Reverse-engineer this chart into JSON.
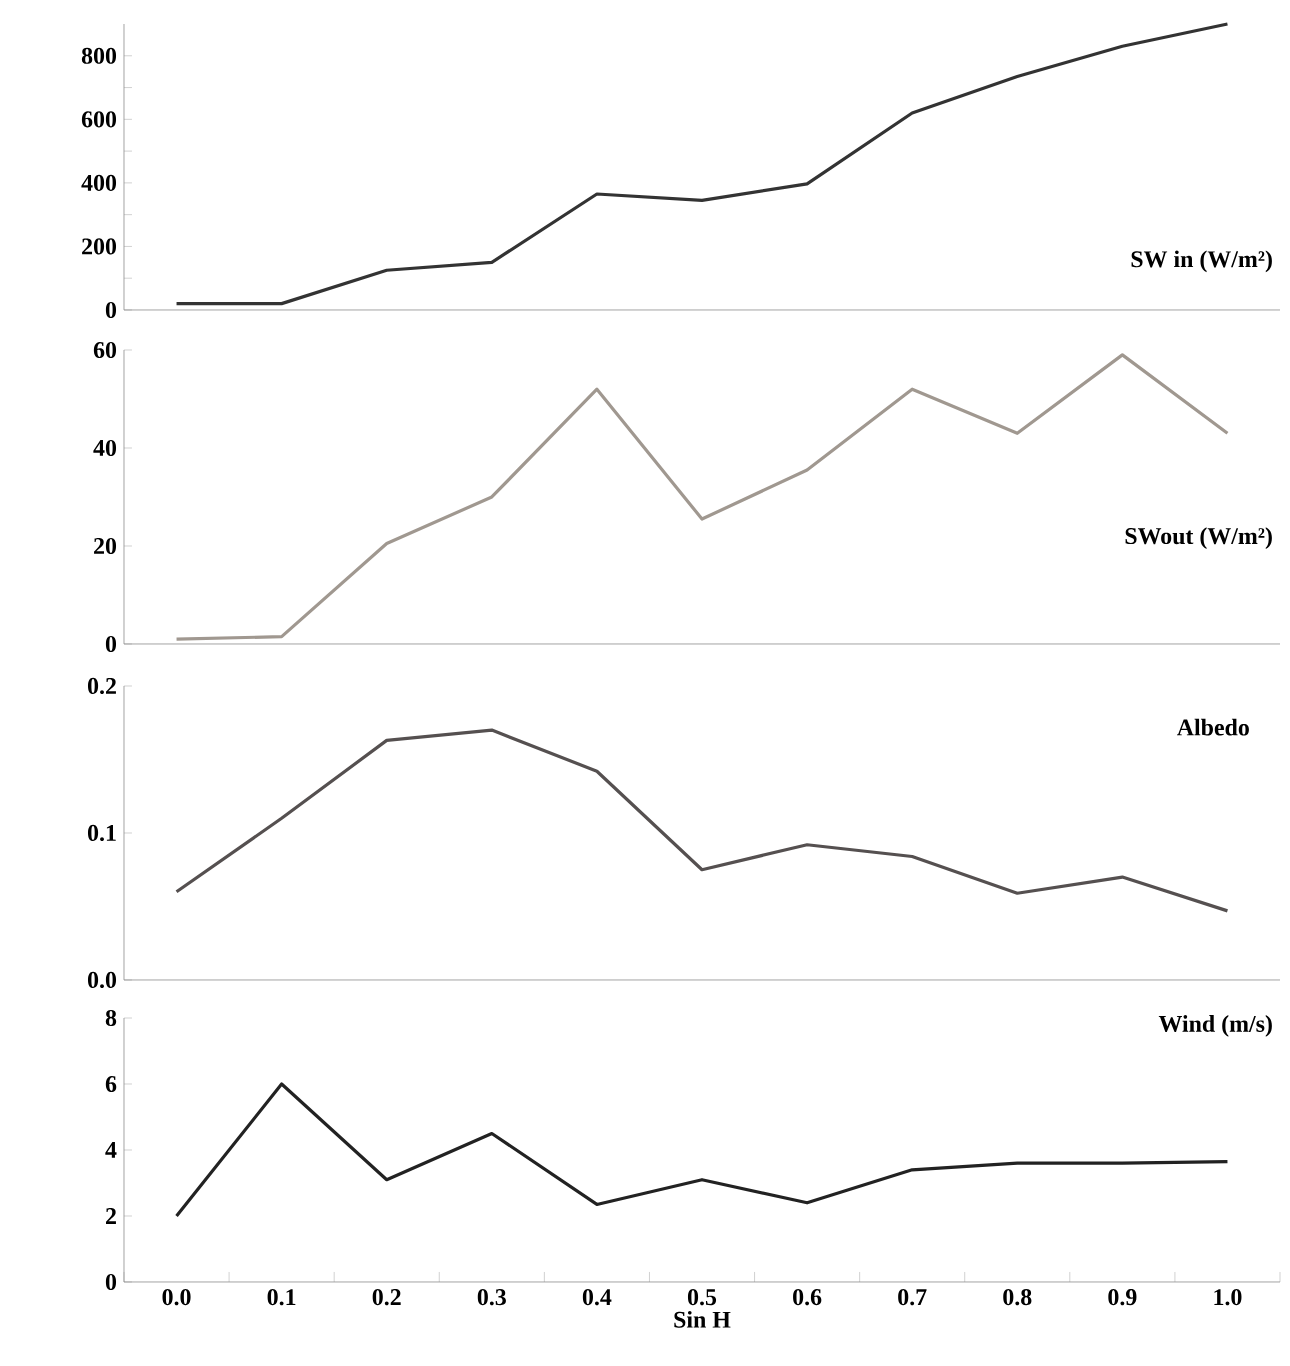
{
  "chart_data": [
    {
      "type": "line",
      "categories": [
        "0.0",
        "0.1",
        "0.2",
        "0.3",
        "0.4",
        "0.5",
        "0.6",
        "0.7",
        "0.8",
        "0.9",
        "1.0"
      ],
      "series": [
        {
          "name": "SW in (W/m²)",
          "color": "#333333",
          "values": [
            20,
            20,
            125,
            150,
            365,
            345,
            397,
            620,
            735,
            830,
            900
          ]
        }
      ],
      "ylim": [
        0,
        900
      ],
      "yticks": [
        0,
        {
          "value": 100,
          "label": null
        },
        200,
        {
          "value": 300,
          "label": null
        },
        400,
        {
          "value": 500,
          "label": null
        },
        600,
        {
          "value": 700,
          "label": null
        },
        800
      ],
      "tick_labels": "y"
    },
    {
      "type": "line",
      "categories": [
        "0.0",
        "0.1",
        "0.2",
        "0.3",
        "0.4",
        "0.5",
        "0.6",
        "0.7",
        "0.8",
        "0.9",
        "1.0"
      ],
      "series": [
        {
          "name": "SWout (W/m²)",
          "color": "#a09890",
          "values": [
            1,
            1.5,
            20.5,
            30,
            52,
            25.5,
            35.5,
            52,
            43,
            59,
            43
          ]
        }
      ],
      "ylim": [
        0,
        60
      ],
      "yticks": [
        0,
        20,
        40,
        60
      ],
      "tick_labels": "y"
    },
    {
      "type": "line",
      "categories": [
        "0.0",
        "0.1",
        "0.2",
        "0.3",
        "0.4",
        "0.5",
        "0.6",
        "0.7",
        "0.8",
        "0.9",
        "1.0"
      ],
      "series": [
        {
          "name": "Albedo",
          "color": "#555050",
          "values": [
            0.06,
            0.11,
            0.163,
            0.17,
            0.142,
            0.075,
            0.092,
            0.084,
            0.059,
            0.07,
            0.047
          ]
        }
      ],
      "ylim": [
        0,
        0.2
      ],
      "yticks": [
        {
          "value": 0,
          "label": "0.0"
        },
        0.1,
        0.2
      ],
      "tick_labels": "y"
    },
    {
      "type": "line",
      "xlabel": "Sin H",
      "categories": [
        "0.0",
        "0.1",
        "0.2",
        "0.3",
        "0.4",
        "0.5",
        "0.6",
        "0.7",
        "0.8",
        "0.9",
        "1.0"
      ],
      "series": [
        {
          "name": "Wind (m/s)",
          "color": "#222222",
          "values": [
            2,
            6,
            3.1,
            4.5,
            2.35,
            3.1,
            2.4,
            3.4,
            3.6,
            3.6,
            3.65
          ]
        }
      ],
      "ylim": [
        0,
        8
      ],
      "yticks": [
        0,
        2,
        4,
        6,
        8
      ]
    }
  ]
}
